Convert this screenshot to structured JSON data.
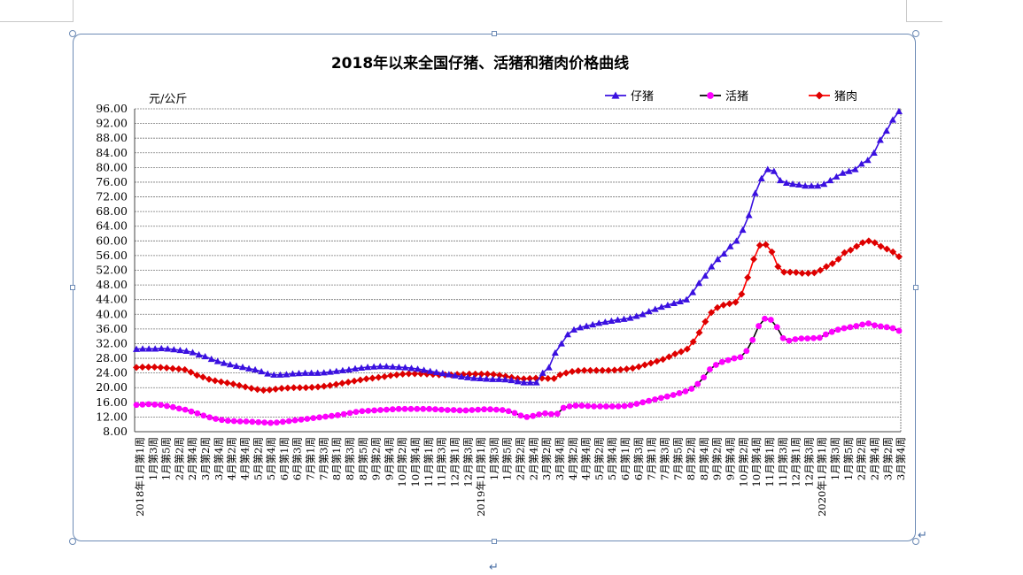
{
  "colors": {
    "piglet": "#3a10e0",
    "live_hog": "#000000",
    "live_hog_marker": "#ff00ff",
    "pork": "#ff0000",
    "pork_marker": "#dd0000",
    "grid": "#777777",
    "frame": "#6d8bb5"
  },
  "chart_data": {
    "type": "line",
    "title": "2018年以来全国仔猪、活猪和猪肉价格曲线",
    "ylabel": "元/公斤",
    "ylim": [
      8,
      96
    ],
    "yticks": [
      "96.00",
      "92.00",
      "88.00",
      "84.00",
      "80.00",
      "76.00",
      "72.00",
      "68.00",
      "64.00",
      "60.00",
      "56.00",
      "52.00",
      "48.00",
      "44.00",
      "40.00",
      "36.00",
      "32.00",
      "28.00",
      "24.00",
      "20.00",
      "16.00",
      "12.00",
      "8.00"
    ],
    "legend_position": "top-right",
    "grid": true,
    "x_labels": [
      "2018年1月第1周",
      "1月第3周",
      "1月第5周",
      "2月第2周",
      "2月第4周",
      "3月第2周",
      "3月第4周",
      "4月第2周",
      "4月第4周",
      "5月第2周",
      "5月第4周",
      "6月第1周",
      "6月第3周",
      "7月第1周",
      "7月第3周",
      "8月第1周",
      "8月第3周",
      "8月第5周",
      "9月第2周",
      "9月第4周",
      "10月第2周",
      "10月第4周",
      "11月第1周",
      "11月第3周",
      "12月第1周",
      "12月第3周",
      "2019年1月第1周",
      "1月第3周",
      "1月第5周",
      "2月第2周",
      "2月第4周",
      "3月第2周",
      "3月第4周",
      "4月第2周",
      "4月第4周",
      "5月第2周",
      "5月第4周",
      "6月第1周",
      "6月第3周",
      "7月第1周",
      "7月第3周",
      "7月第5周",
      "8月第2周",
      "8月第4周",
      "9月第2周",
      "9月第4周",
      "10月第2周",
      "10月第4周",
      "11月第1周",
      "11月第3周",
      "12月第1周",
      "12月第3周",
      "2020年1月第1周",
      "1月第3周",
      "1月第5周",
      "2月第2周",
      "2月第4周",
      "3月第2周",
      "3月第4周"
    ],
    "series": [
      {
        "name": "仔猪",
        "marker": "triangle",
        "values": [
          30.5,
          30.6,
          30.6,
          30.6,
          30.7,
          30.6,
          30.4,
          30.2,
          30.0,
          29.6,
          29.0,
          28.5,
          27.8,
          27.2,
          26.7,
          26.3,
          25.9,
          25.6,
          25.2,
          24.9,
          24.4,
          23.8,
          23.5,
          23.5,
          23.6,
          23.8,
          23.9,
          24.0,
          24.0,
          24.0,
          24.1,
          24.3,
          24.5,
          24.7,
          24.9,
          25.2,
          25.4,
          25.6,
          25.7,
          25.8,
          25.8,
          25.7,
          25.6,
          25.5,
          25.3,
          25.1,
          24.8,
          24.5,
          24.2,
          23.9,
          23.6,
          23.3,
          23.0,
          22.8,
          22.6,
          22.5,
          22.4,
          22.3,
          22.3,
          22.2,
          22.0,
          21.7,
          21.4,
          21.4,
          21.4,
          24.0,
          25.5,
          29.5,
          32.0,
          34.5,
          35.8,
          36.4,
          36.8,
          37.2,
          37.6,
          37.9,
          38.2,
          38.5,
          38.7,
          39.0,
          39.5,
          40.0,
          40.8,
          41.4,
          42.0,
          42.5,
          43.0,
          43.5,
          44.0,
          46.0,
          48.5,
          50.5,
          53.0,
          55.0,
          56.5,
          58.5,
          60.0,
          63.0,
          67.0,
          73.0,
          77.0,
          79.5,
          79.0,
          76.5,
          75.8,
          75.5,
          75.3,
          75.0,
          75.0,
          75.0,
          75.5,
          76.5,
          77.5,
          78.5,
          79.0,
          79.5,
          81.0,
          82.0,
          84.0,
          87.5,
          90.0,
          93.0,
          95.3
        ]
      },
      {
        "name": "活猪",
        "marker": "circle",
        "values": [
          15.3,
          15.4,
          15.5,
          15.4,
          15.3,
          15.0,
          14.7,
          14.3,
          14.0,
          13.5,
          13.0,
          12.4,
          11.9,
          11.5,
          11.2,
          11.0,
          10.9,
          10.8,
          10.8,
          10.7,
          10.6,
          10.5,
          10.4,
          10.5,
          10.7,
          10.9,
          11.1,
          11.3,
          11.5,
          11.7,
          11.9,
          12.1,
          12.3,
          12.5,
          12.8,
          13.1,
          13.4,
          13.6,
          13.7,
          13.8,
          13.9,
          14.0,
          14.1,
          14.2,
          14.2,
          14.2,
          14.2,
          14.2,
          14.2,
          14.1,
          14.0,
          13.9,
          13.9,
          13.8,
          13.8,
          13.9,
          14.0,
          14.1,
          14.1,
          14.0,
          13.9,
          13.6,
          13.1,
          12.4,
          12.0,
          12.3,
          12.7,
          13.0,
          12.8,
          12.9,
          14.5,
          14.9,
          15.1,
          15.1,
          15.0,
          14.9,
          14.9,
          14.9,
          14.9,
          14.9,
          15.0,
          15.2,
          15.6,
          16.0,
          16.4,
          16.8,
          17.2,
          17.6,
          18.0,
          18.5,
          19.0,
          19.7,
          21.0,
          22.8,
          25.0,
          26.2,
          27.0,
          27.5,
          28.0,
          28.3,
          30.0,
          33.0,
          36.8,
          38.8,
          38.5,
          36.5,
          33.5,
          32.8,
          33.2,
          33.4,
          33.4,
          33.5,
          33.6,
          34.5,
          35.2,
          35.8,
          36.2,
          36.5,
          36.8,
          37.2,
          37.5,
          37.0,
          36.7,
          36.5,
          36.2,
          35.5
        ]
      },
      {
        "name": "猪肉",
        "marker": "diamond",
        "values": [
          25.5,
          25.6,
          25.6,
          25.6,
          25.5,
          25.4,
          25.2,
          25.1,
          24.9,
          24.2,
          23.4,
          22.9,
          22.3,
          21.9,
          21.6,
          21.3,
          21.0,
          20.6,
          20.2,
          19.8,
          19.5,
          19.3,
          19.4,
          19.6,
          19.8,
          19.9,
          20.0,
          20.0,
          20.0,
          20.1,
          20.2,
          20.4,
          20.6,
          20.9,
          21.2,
          21.5,
          21.8,
          22.1,
          22.4,
          22.6,
          22.8,
          23.0,
          23.3,
          23.5,
          23.7,
          23.8,
          23.8,
          23.8,
          23.7,
          23.6,
          23.5,
          23.5,
          23.5,
          23.6,
          23.6,
          23.7,
          23.7,
          23.7,
          23.7,
          23.6,
          23.4,
          23.1,
          22.8,
          22.5,
          22.4,
          22.5,
          22.6,
          22.6,
          22.5,
          22.5,
          23.5,
          24.0,
          24.4,
          24.6,
          24.7,
          24.7,
          24.7,
          24.7,
          24.7,
          24.8,
          24.9,
          25.1,
          25.3,
          25.7,
          26.2,
          26.7,
          27.2,
          27.7,
          28.4,
          29.2,
          29.8,
          30.5,
          32.5,
          35.0,
          38.0,
          40.5,
          41.8,
          42.5,
          42.9,
          43.3,
          45.5,
          50.0,
          55.0,
          58.8,
          59.0,
          57.0,
          53.0,
          51.5,
          51.5,
          51.4,
          51.2,
          51.2,
          51.3,
          52.0,
          53.0,
          53.8,
          55.0,
          56.8,
          57.5,
          58.5,
          59.5,
          60.0,
          59.5,
          58.5,
          57.8,
          57.0,
          55.7
        ]
      }
    ]
  }
}
